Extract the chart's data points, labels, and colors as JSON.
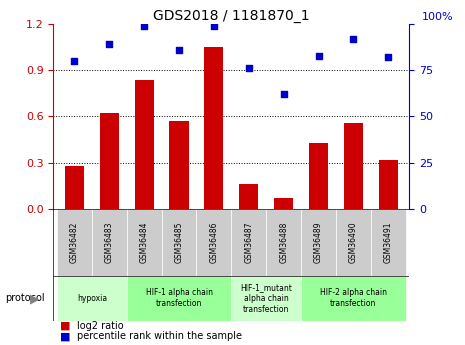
{
  "title": "GDS2018 / 1181870_1",
  "samples": [
    "GSM36482",
    "GSM36483",
    "GSM36484",
    "GSM36485",
    "GSM36486",
    "GSM36487",
    "GSM36488",
    "GSM36489",
    "GSM36490",
    "GSM36491"
  ],
  "log2_ratio": [
    0.28,
    0.62,
    0.84,
    0.57,
    1.05,
    0.16,
    0.07,
    0.43,
    0.56,
    0.32
  ],
  "percentile_rank": [
    80,
    89,
    99,
    86,
    99,
    76,
    62,
    83,
    92,
    82
  ],
  "bar_color": "#cc0000",
  "dot_color": "#0000cc",
  "ylim_left": [
    0,
    1.2
  ],
  "ylim_right": [
    0,
    100
  ],
  "yticks_left": [
    0,
    0.3,
    0.6,
    0.9,
    1.2
  ],
  "yticks_right": [
    0,
    25,
    50,
    75,
    100
  ],
  "protocols": [
    {
      "label": "hypoxia",
      "start": 0,
      "end": 2,
      "color": "#ccffcc"
    },
    {
      "label": "HIF-1 alpha chain\ntransfection",
      "start": 2,
      "end": 5,
      "color": "#99ff99"
    },
    {
      "label": "HIF-1_mutant\nalpha chain\ntransfection",
      "start": 5,
      "end": 7,
      "color": "#ccffcc"
    },
    {
      "label": "HIF-2 alpha chain\ntransfection",
      "start": 7,
      "end": 10,
      "color": "#99ff99"
    }
  ],
  "protocol_label": "protocol",
  "legend_bar_label": "log2 ratio",
  "legend_dot_label": "percentile rank within the sample",
  "tick_label_color_left": "#cc0000",
  "tick_label_color_right": "#0000cc",
  "bar_width": 0.55,
  "sample_box_color": "#cccccc",
  "bg_color": "#ffffff"
}
